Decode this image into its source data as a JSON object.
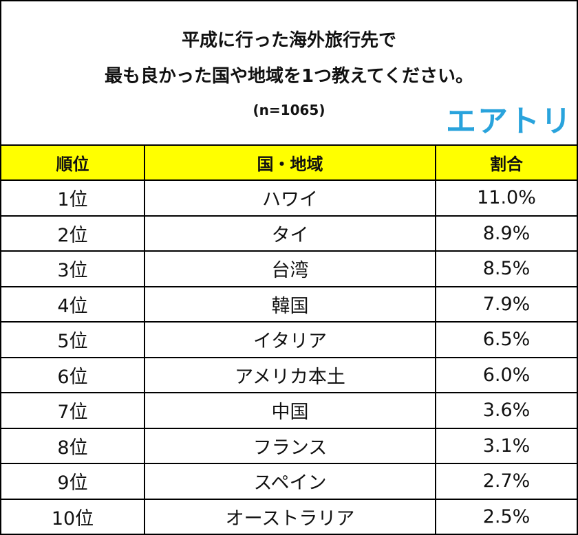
{
  "header": {
    "title_line1": "平成に行った海外旅行先で",
    "title_line2": "最も良かった国や地域を1つ教えてください。",
    "sample": "(n=1065)",
    "logo": "エアトリ"
  },
  "table": {
    "columns": [
      "順位",
      "国・地域",
      "割合"
    ],
    "rows": [
      {
        "rank": "1位",
        "place": "ハワイ",
        "pct": "11.0%"
      },
      {
        "rank": "2位",
        "place": "タイ",
        "pct": "8.9%"
      },
      {
        "rank": "3位",
        "place": "台湾",
        "pct": "8.5%"
      },
      {
        "rank": "4位",
        "place": "韓国",
        "pct": "7.9%"
      },
      {
        "rank": "5位",
        "place": "イタリア",
        "pct": "6.5%"
      },
      {
        "rank": "6位",
        "place": "アメリカ本土",
        "pct": "6.0%"
      },
      {
        "rank": "7位",
        "place": "中国",
        "pct": "3.6%"
      },
      {
        "rank": "8位",
        "place": "フランス",
        "pct": "3.1%"
      },
      {
        "rank": "9位",
        "place": "スペイン",
        "pct": "2.7%"
      },
      {
        "rank": "10位",
        "place": "オーストラリア",
        "pct": "2.5%"
      }
    ]
  },
  "colors": {
    "header_row_bg": "#ffff00",
    "logo": "#29a3dc",
    "border": "#000000"
  }
}
